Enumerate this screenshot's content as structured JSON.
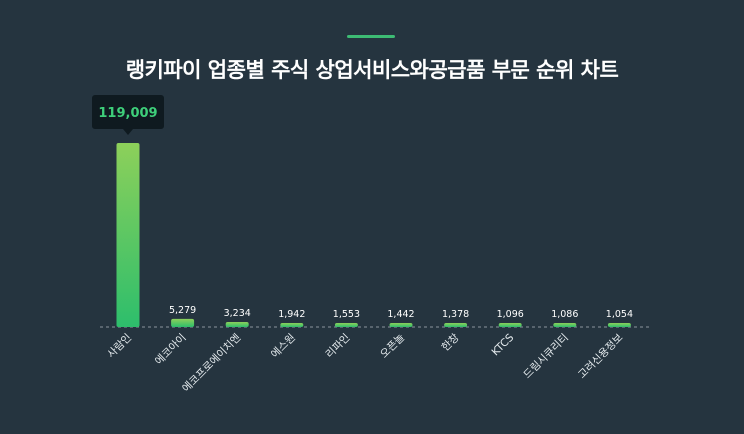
{
  "title": "랭키파이 업종별 주식 상업서비스와공급품 부문 순위 차트",
  "colors": {
    "background": "#25343f",
    "accent": "#3dbb74",
    "bar_top": "#8dd05a",
    "bar_bottom": "#2dbe6c",
    "tooltip_bg": "#0f1a20",
    "tooltip_text": "#3ecf7a"
  },
  "chart_data": {
    "type": "bar",
    "title": "랭키파이 업종별 주식 상업서비스와공급품 부문 순위 차트",
    "categories": [
      "사람인",
      "에코아이",
      "에코프로에이치엔",
      "에스원",
      "리파인",
      "오픈놀",
      "한창",
      "KTCS",
      "드림시큐리티",
      "고려신용정보"
    ],
    "values": [
      119009,
      5279,
      3234,
      1942,
      1553,
      1442,
      1378,
      1096,
      1086,
      1054
    ],
    "value_labels": [
      "119,009",
      "5,279",
      "3,234",
      "1,942",
      "1,553",
      "1,442",
      "1,378",
      "1,096",
      "1,086",
      "1,054"
    ],
    "highlight_index": 0,
    "xlabel": "",
    "ylabel": "",
    "ylim": [
      0,
      119009
    ],
    "grid": false,
    "legend": "none"
  }
}
